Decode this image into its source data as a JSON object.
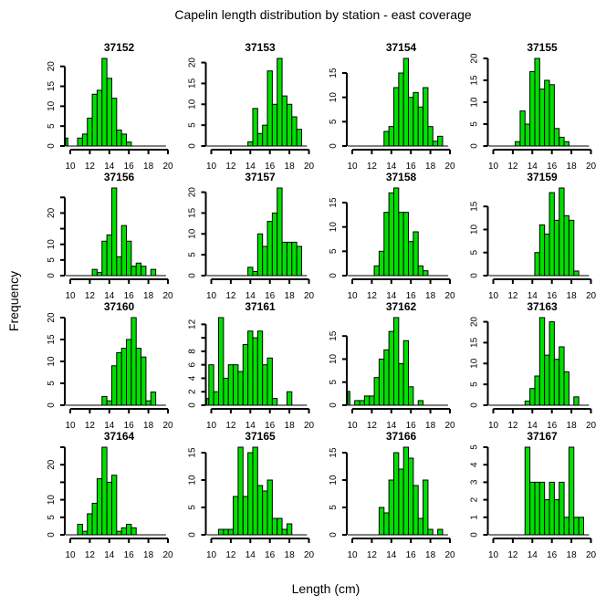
{
  "chart_data": {
    "type": "bar",
    "title": "Capelin length distribution by station - east coverage",
    "xlabel": "Length (cm)",
    "ylabel": "Frequency",
    "bin_width": 0.5,
    "xlim": [
      10,
      20
    ],
    "xticks": [
      10,
      12,
      14,
      16,
      18,
      20
    ],
    "bar_color": "#00e000",
    "grid": false,
    "panels": [
      {
        "station": "37152",
        "x": [
          9.5,
          11,
          11.5,
          12,
          12.5,
          13,
          13.5,
          14,
          14.5,
          15,
          15.5,
          16
        ],
        "y": [
          2,
          2,
          3,
          7,
          13,
          14,
          22,
          17,
          12,
          4,
          3,
          1
        ],
        "yticks": [
          0,
          5,
          10,
          15,
          20
        ],
        "ytick_labels": [
          "0",
          "5",
          "10",
          "15",
          "20"
        ]
      },
      {
        "station": "37153",
        "x": [
          14,
          14.5,
          15,
          15.5,
          16,
          16.5,
          17,
          17.5,
          18,
          18.5,
          19
        ],
        "y": [
          1,
          9,
          3,
          5,
          18,
          10,
          21,
          12,
          10,
          7,
          4
        ],
        "yticks": [
          0,
          5,
          10,
          15,
          20
        ],
        "ytick_labels": [
          "0",
          "5",
          "10",
          "15",
          "20"
        ]
      },
      {
        "station": "37154",
        "x": [
          13.5,
          14,
          14.5,
          15,
          15.5,
          16,
          16.5,
          17,
          17.5,
          18,
          18.5,
          19
        ],
        "y": [
          3,
          4,
          12,
          15,
          18,
          10,
          11,
          8,
          12,
          4,
          1,
          2
        ],
        "yticks": [
          0,
          5,
          10,
          15
        ],
        "ytick_labels": [
          "0",
          "5",
          "10",
          "15"
        ]
      },
      {
        "station": "37155",
        "x": [
          12.5,
          13,
          13.5,
          14,
          14.5,
          15,
          15.5,
          16,
          16.5,
          17,
          17.5
        ],
        "y": [
          1,
          8,
          5,
          17,
          20,
          13,
          15,
          14,
          4,
          2,
          1
        ],
        "yticks": [
          0,
          5,
          10,
          15,
          20
        ],
        "ytick_labels": [
          "0",
          "5",
          "10",
          "15",
          "20"
        ]
      },
      {
        "station": "37156",
        "x": [
          12.5,
          13,
          13.5,
          14,
          14.5,
          15,
          15.5,
          16,
          16.5,
          17,
          17.5,
          18.5
        ],
        "y": [
          2,
          1,
          11,
          13,
          28,
          6,
          16,
          11,
          3,
          4,
          3,
          2
        ],
        "yticks": [
          0,
          5,
          10,
          15,
          20,
          25
        ],
        "ytick_labels": [
          "0",
          "5",
          "10",
          "",
          "20",
          ""
        ]
      },
      {
        "station": "37157",
        "x": [
          14,
          14.5,
          15,
          15.5,
          16,
          16.5,
          17,
          17.5,
          18,
          18.5,
          19
        ],
        "y": [
          2,
          1,
          10,
          7,
          13,
          15,
          21,
          8,
          8,
          8,
          7
        ],
        "yticks": [
          0,
          5,
          10,
          15,
          20
        ],
        "ytick_labels": [
          "0",
          "5",
          "10",
          "15",
          "20"
        ]
      },
      {
        "station": "37158",
        "x": [
          12.5,
          13,
          13.5,
          14,
          14.5,
          15,
          15.5,
          16,
          16.5,
          17,
          17.5
        ],
        "y": [
          2,
          5,
          13,
          17,
          18,
          13,
          13,
          7,
          9,
          2,
          1
        ],
        "yticks": [
          0,
          5,
          10,
          15
        ],
        "ytick_labels": [
          "0",
          "5",
          "10",
          "15"
        ]
      },
      {
        "station": "37159",
        "x": [
          14.5,
          15,
          15.5,
          16,
          16.5,
          17,
          17.5,
          18,
          18.5
        ],
        "y": [
          5,
          11,
          9,
          18,
          12,
          19,
          13,
          12,
          1
        ],
        "yticks": [
          0,
          5,
          10,
          15
        ],
        "ytick_labels": [
          "0",
          "5",
          "10",
          "15"
        ]
      },
      {
        "station": "37160",
        "x": [
          13.5,
          14,
          14.5,
          15,
          15.5,
          16,
          16.5,
          17,
          17.5,
          18,
          18.5
        ],
        "y": [
          2,
          1,
          9,
          12,
          13,
          15,
          20,
          13,
          11,
          1,
          3
        ],
        "yticks": [
          0,
          5,
          10,
          15,
          20
        ],
        "ytick_labels": [
          "0",
          "5",
          "10",
          "15",
          "20"
        ]
      },
      {
        "station": "37161",
        "x": [
          9.5,
          10,
          10.5,
          11,
          11.5,
          12,
          12.5,
          13,
          13.5,
          14,
          14.5,
          15,
          15.5,
          16,
          16.5,
          18
        ],
        "y": [
          1,
          6,
          2,
          13,
          4,
          6,
          6,
          5,
          9,
          11,
          10,
          11,
          6,
          7,
          1,
          2
        ],
        "yticks": [
          0,
          2,
          4,
          6,
          8,
          10,
          12
        ],
        "ytick_labels": [
          "0",
          "2",
          "4",
          "6",
          "8",
          "",
          "12"
        ]
      },
      {
        "station": "37162",
        "x": [
          9.5,
          10.5,
          11,
          11.5,
          12,
          12.5,
          13,
          13.5,
          14,
          14.5,
          15,
          15.5,
          16,
          17
        ],
        "y": [
          3,
          1,
          1,
          2,
          2,
          6,
          10,
          12,
          16,
          19,
          9,
          14,
          4,
          1
        ],
        "yticks": [
          0,
          5,
          10,
          15
        ],
        "ytick_labels": [
          "0",
          "5",
          "10",
          "15"
        ]
      },
      {
        "station": "37163",
        "x": [
          13.5,
          14,
          14.5,
          15,
          15.5,
          16,
          16.5,
          17,
          17.5,
          18.5
        ],
        "y": [
          1,
          4,
          7,
          21,
          12,
          20,
          11,
          14,
          8,
          2
        ],
        "yticks": [
          0,
          5,
          10,
          15,
          20
        ],
        "ytick_labels": [
          "0",
          "5",
          "10",
          "15",
          "20"
        ]
      },
      {
        "station": "37164",
        "x": [
          11,
          11.5,
          12,
          12.5,
          13,
          13.5,
          14,
          14.5,
          15,
          15.5,
          16,
          16.5
        ],
        "y": [
          3,
          1,
          6,
          9,
          16,
          25,
          15,
          17,
          1,
          2,
          3,
          2
        ],
        "yticks": [
          0,
          5,
          10,
          15,
          20,
          25
        ],
        "ytick_labels": [
          "0",
          "5",
          "10",
          "",
          "20",
          ""
        ]
      },
      {
        "station": "37165",
        "x": [
          11,
          11.5,
          12,
          12.5,
          13,
          13.5,
          14,
          14.5,
          15,
          15.5,
          16,
          16.5,
          17,
          17.5,
          18
        ],
        "y": [
          1,
          1,
          1,
          7,
          16,
          7,
          15,
          16,
          9,
          8,
          10,
          3,
          3,
          1,
          2
        ],
        "yticks": [
          0,
          5,
          10,
          15
        ],
        "ytick_labels": [
          "0",
          "5",
          "10",
          "15"
        ]
      },
      {
        "station": "37166",
        "x": [
          13,
          13.5,
          14,
          14.5,
          15,
          15.5,
          16,
          16.5,
          17,
          17.5,
          18,
          19
        ],
        "y": [
          5,
          4,
          10,
          15,
          12,
          16,
          14,
          9,
          3,
          10,
          1,
          1
        ],
        "yticks": [
          0,
          5,
          10,
          15
        ],
        "ytick_labels": [
          "0",
          "5",
          "10",
          "15"
        ]
      },
      {
        "station": "37167",
        "x": [
          13.5,
          14,
          14.5,
          15,
          15.5,
          16,
          16.5,
          17,
          17.5,
          18,
          18.5,
          19
        ],
        "y": [
          5,
          3,
          3,
          3,
          2,
          3,
          2,
          3,
          1,
          5,
          1,
          1
        ],
        "yticks": [
          0,
          1,
          2,
          3,
          4,
          5
        ],
        "ytick_labels": [
          "0",
          "1",
          "2",
          "3",
          "4",
          "5"
        ]
      }
    ]
  }
}
